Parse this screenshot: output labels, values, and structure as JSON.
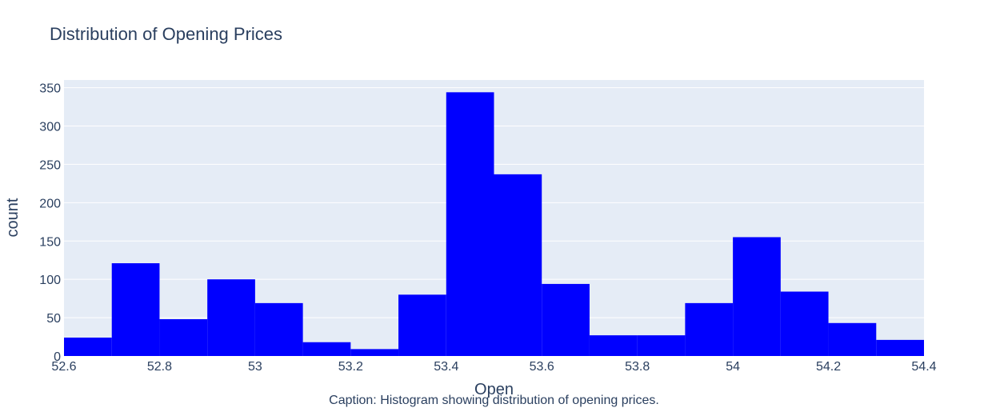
{
  "chart_data": {
    "type": "bar",
    "subtype": "histogram",
    "title": "Distribution of Opening Prices",
    "xlabel": "Open",
    "ylabel": "count",
    "bin_edges": [
      52.6,
      52.7,
      52.8,
      52.9,
      53.0,
      53.1,
      53.2,
      53.3,
      53.4,
      53.5,
      53.6,
      53.7,
      53.8,
      53.9,
      54.0,
      54.1,
      54.2,
      54.3,
      54.4
    ],
    "values": [
      24,
      121,
      48,
      100,
      69,
      18,
      9,
      80,
      344,
      237,
      94,
      27,
      27,
      69,
      155,
      84,
      43,
      21
    ],
    "xlim": [
      52.6,
      54.4
    ],
    "ylim": [
      0,
      360
    ],
    "x_ticks": [
      52.6,
      52.8,
      53,
      53.2,
      53.4,
      53.6,
      53.8,
      54,
      54.2,
      54.4
    ],
    "x_tick_labels": [
      "52.6",
      "52.8",
      "53",
      "53.2",
      "53.4",
      "53.6",
      "53.8",
      "54",
      "54.2",
      "54.4"
    ],
    "y_ticks": [
      0,
      50,
      100,
      150,
      200,
      250,
      300,
      350
    ],
    "y_tick_labels": [
      "0",
      "50",
      "100",
      "150",
      "200",
      "250",
      "300",
      "350"
    ],
    "bar_color": "#0000ff",
    "plot_background": "#e5ecf6",
    "grid_color": "#ffffff",
    "grid": true
  },
  "caption": "Caption: Histogram showing distribution of opening prices."
}
